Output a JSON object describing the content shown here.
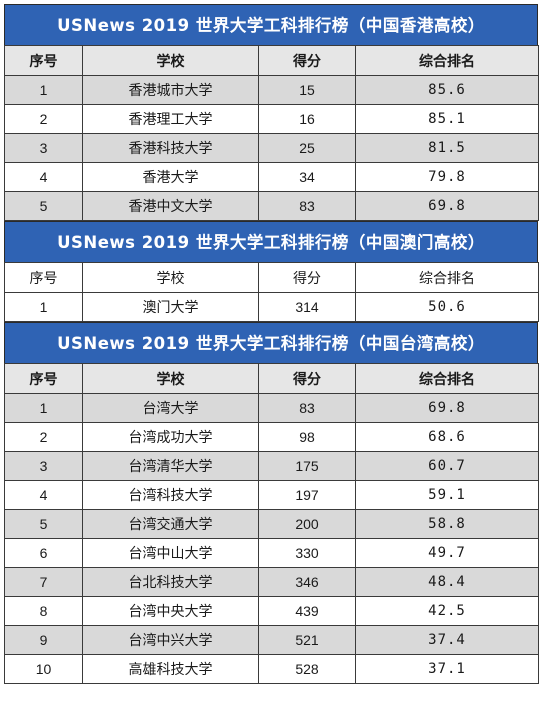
{
  "sections": [
    {
      "title": "USNews 2019 世界大学工科排行榜（中国香港高校）",
      "header_bold": true,
      "headers": [
        "序号",
        "学校",
        "得分",
        "综合排名"
      ],
      "rows": [
        [
          "1",
          "香港城市大学",
          "15",
          "85.6"
        ],
        [
          "2",
          "香港理工大学",
          "16",
          "85.1"
        ],
        [
          "3",
          "香港科技大学",
          "25",
          "81.5"
        ],
        [
          "4",
          "香港大学",
          "34",
          "79.8"
        ],
        [
          "5",
          "香港中文大学",
          "83",
          "69.8"
        ]
      ]
    },
    {
      "title": "USNews 2019 世界大学工科排行榜（中国澳门高校）",
      "header_bold": false,
      "headers": [
        "序号",
        "学校",
        "得分",
        "综合排名"
      ],
      "rows": [
        [
          "1",
          "澳门大学",
          "314",
          "50.6"
        ]
      ]
    },
    {
      "title": "USNews 2019 世界大学工科排行榜（中国台湾高校）",
      "header_bold": true,
      "headers": [
        "序号",
        "学校",
        "得分",
        "综合排名"
      ],
      "rows": [
        [
          "1",
          "台湾大学",
          "83",
          "69.8"
        ],
        [
          "2",
          "台湾成功大学",
          "98",
          "68.6"
        ],
        [
          "3",
          "台湾清华大学",
          "175",
          "60.7"
        ],
        [
          "4",
          "台湾科技大学",
          "197",
          "59.1"
        ],
        [
          "5",
          "台湾交通大学",
          "200",
          "58.8"
        ],
        [
          "6",
          "台湾中山大学",
          "330",
          "49.7"
        ],
        [
          "7",
          "台北科技大学",
          "346",
          "48.4"
        ],
        [
          "8",
          "台湾中央大学",
          "439",
          "42.5"
        ],
        [
          "9",
          "台湾中兴大学",
          "521",
          "37.4"
        ],
        [
          "10",
          "高雄科技大学",
          "528",
          "37.1"
        ]
      ]
    }
  ],
  "colors": {
    "title_bg": "#2f63b4",
    "shaded_row": "#d9d9d9",
    "header_bg": "#e6e6e6"
  }
}
